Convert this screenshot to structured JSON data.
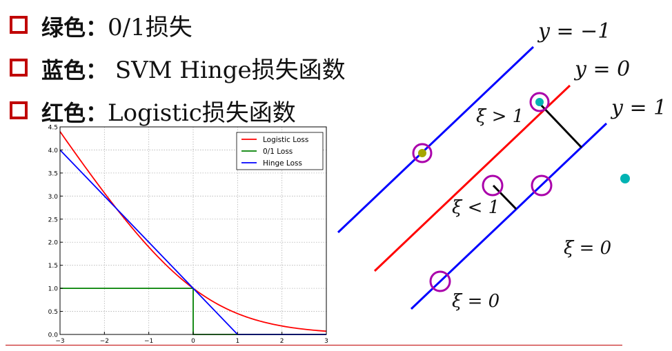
{
  "bullets": [
    {
      "label": "绿色：",
      "content": "0/1损失"
    },
    {
      "label": "蓝色：",
      "content": " SVM Hinge损失函数"
    },
    {
      "label": "红色：",
      "content": "Logistic损失函数"
    }
  ],
  "chart_data": {
    "type": "line",
    "title": "",
    "xlabel": "",
    "ylabel": "",
    "xlim": [
      -3,
      3
    ],
    "ylim": [
      0,
      4.5
    ],
    "xticks": [
      "−3",
      "−2",
      "−1",
      "0",
      "1",
      "2",
      "3"
    ],
    "yticks": [
      "0.0",
      "0.5",
      "1.0",
      "1.5",
      "2.0",
      "2.5",
      "3.0",
      "3.5",
      "4.0",
      "4.5"
    ],
    "grid": true,
    "legend_position": "top-right",
    "series": [
      {
        "name": "Logistic Loss",
        "color": "#ff0000",
        "x": [
          -3,
          -2.5,
          -2,
          -1.5,
          -1,
          -0.5,
          0,
          0.5,
          1,
          1.5,
          2,
          2.5,
          3
        ],
        "y": [
          4.39,
          3.73,
          3.08,
          2.45,
          1.89,
          1.4,
          1.0,
          0.69,
          0.45,
          0.29,
          0.18,
          0.11,
          0.07
        ]
      },
      {
        "name": "0/1 Loss",
        "color": "#008000",
        "x": [
          -3,
          0,
          0,
          3
        ],
        "y": [
          1,
          1,
          0,
          0
        ]
      },
      {
        "name": "Hinge Loss",
        "color": "#0000ff",
        "x": [
          -3,
          1,
          3
        ],
        "y": [
          4,
          0,
          0
        ]
      }
    ]
  },
  "diagram": {
    "line_labels": [
      "y = −1",
      "y = 0",
      "y = 1"
    ],
    "slack_labels": [
      "ξ > 1",
      "ξ < 1",
      "ξ = 0",
      "ξ = 0"
    ],
    "colors": {
      "margin_lines": "#0000ff",
      "decision_line": "#ff0000",
      "circles": "#aa00aa",
      "point_a": "#00b3b3",
      "point_b": "#a6a600"
    }
  }
}
